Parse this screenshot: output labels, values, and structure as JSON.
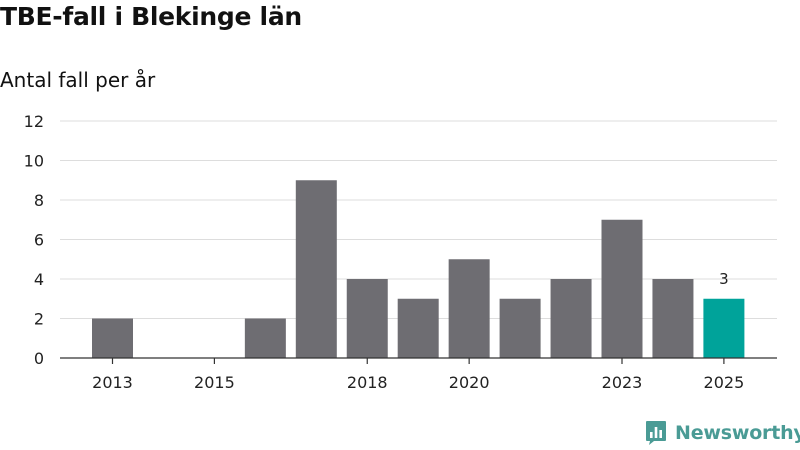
{
  "chart_data": {
    "type": "bar",
    "title": "TBE-fall i Blekinge län",
    "subtitle": "Antal fall per år",
    "xlabel": "",
    "ylabel": "",
    "categories": [
      2013,
      2014,
      2015,
      2016,
      2017,
      2018,
      2019,
      2020,
      2021,
      2022,
      2023,
      2024,
      2025
    ],
    "values": [
      2,
      0,
      0,
      2,
      9,
      4,
      3,
      5,
      3,
      4,
      7,
      4,
      3
    ],
    "x_tick_labels": [
      "2013",
      "2015",
      "2018",
      "2020",
      "2023",
      "2025"
    ],
    "y_ticks": [
      0,
      2,
      4,
      6,
      8,
      10,
      12
    ],
    "ylim": [
      0,
      12
    ],
    "grid": true,
    "highlight": {
      "category": 2025,
      "label": "3"
    },
    "colors": {
      "bar": "#6e6d72",
      "highlight": "#00a39a",
      "grid": "#dddddd",
      "axis": "#333333"
    }
  },
  "brand": {
    "name": "Newsworthy",
    "icon": "newsworthy-logo-icon",
    "color": "#4a9b95"
  }
}
